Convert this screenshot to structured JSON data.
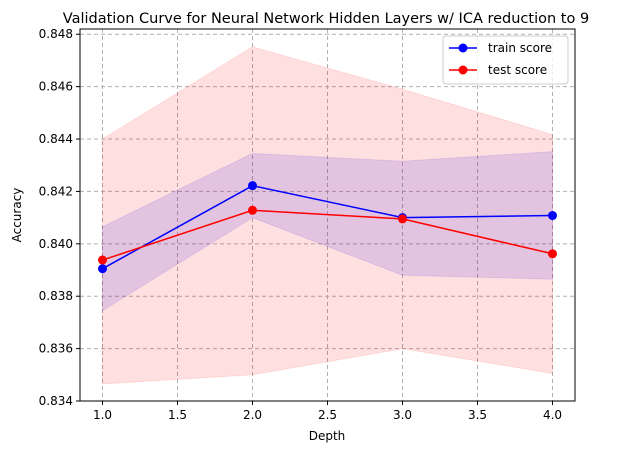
{
  "chart_data": {
    "type": "line",
    "title": "Validation Curve for Neural Network Hidden Layers w/ ICA reduction to 9",
    "xlabel": "Depth",
    "ylabel": "Accuracy",
    "x": [
      1.0,
      2.0,
      3.0,
      4.0
    ],
    "xlim": [
      0.85,
      4.15
    ],
    "ylim": [
      0.834,
      0.8482
    ],
    "xticks": [
      1.0,
      1.5,
      2.0,
      2.5,
      3.0,
      3.5,
      4.0
    ],
    "xtick_labels": [
      "1.0",
      "1.5",
      "2.0",
      "2.5",
      "3.0",
      "3.5",
      "4.0"
    ],
    "yticks": [
      0.834,
      0.836,
      0.838,
      0.84,
      0.842,
      0.844,
      0.846,
      0.848
    ],
    "ytick_labels": [
      "0.834",
      "0.836",
      "0.838",
      "0.840",
      "0.842",
      "0.844",
      "0.846",
      "0.848"
    ],
    "grid": true,
    "legend_position": "top-right",
    "series": [
      {
        "name": "train score",
        "color": "#0000ff",
        "values": [
          0.83905,
          0.84222,
          0.841,
          0.84108
        ],
        "band_lower": [
          0.83745,
          0.841,
          0.8388,
          0.83865
        ],
        "band_upper": [
          0.84065,
          0.84345,
          0.84315,
          0.84352
        ],
        "band_color": "#0000ff",
        "band_opacity": 0.12
      },
      {
        "name": "test score",
        "color": "#ff0000",
        "values": [
          0.83938,
          0.84128,
          0.84095,
          0.83962
        ],
        "band_lower": [
          0.83465,
          0.835,
          0.836,
          0.83505
        ],
        "band_upper": [
          0.844,
          0.84752,
          0.8459,
          0.84417
        ],
        "band_color": "#ff0000",
        "band_opacity": 0.12
      }
    ]
  }
}
